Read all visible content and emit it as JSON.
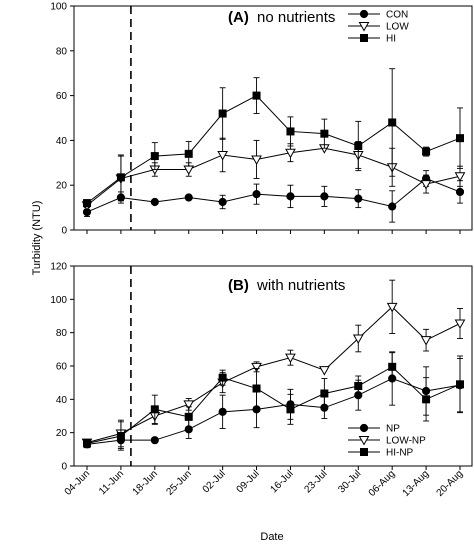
{
  "chart_data": [
    {
      "type": "line",
      "panel_label": "(A)",
      "title": "no nutrients",
      "ylabel": "Turbidity (NTU)",
      "xlabel": "Date",
      "ylim": [
        0,
        100
      ],
      "yticks": [
        0,
        20,
        40,
        60,
        80,
        100
      ],
      "x": [
        "04-Jun",
        "11-Jun",
        "18-Jun",
        "25-Jun",
        "02-Jul",
        "09-Jul",
        "16-Jul",
        "23-Jul",
        "30-Jul",
        "06-Aug",
        "13-Aug",
        "20-Aug"
      ],
      "legend_position": "top-right",
      "marker_date": "11-Jun",
      "series": [
        {
          "name": "CON",
          "marker": "circle",
          "values": [
            8,
            14.5,
            12.5,
            14.5,
            12.5,
            16,
            15,
            15,
            14,
            10.5,
            23,
            17
          ],
          "err": [
            2,
            2.5,
            0,
            0,
            3,
            4.5,
            5,
            4.5,
            4,
            7,
            3.5,
            5
          ]
        },
        {
          "name": "LOW",
          "marker": "triangle-down-open",
          "values": [
            11,
            23,
            27,
            27,
            33.5,
            31.5,
            34.5,
            36.5,
            33.5,
            28,
            20.5,
            24
          ],
          "err": [
            2,
            10,
            3,
            3,
            7.5,
            8.5,
            4,
            0,
            6,
            8.5,
            4,
            4.5
          ]
        },
        {
          "name": "HI",
          "marker": "square",
          "values": [
            12,
            23.5,
            33,
            34,
            52,
            60,
            44,
            43,
            37.5,
            48,
            35,
            41
          ],
          "err": [
            1.5,
            10,
            6,
            5.5,
            11.5,
            8,
            6.5,
            6.5,
            11,
            24,
            2,
            13.5
          ]
        }
      ]
    },
    {
      "type": "line",
      "panel_label": "(B)",
      "title": "with nutrients",
      "ylabel": "Turbidity (NTU)",
      "xlabel": "Date",
      "ylim": [
        0,
        120
      ],
      "yticks": [
        0,
        20,
        40,
        60,
        80,
        100,
        120
      ],
      "x": [
        "04-Jun",
        "11-Jun",
        "18-Jun",
        "25-Jun",
        "02-Jul",
        "09-Jul",
        "16-Jul",
        "23-Jul",
        "30-Jul",
        "06-Aug",
        "13-Aug",
        "20-Aug"
      ],
      "legend_position": "bottom-right",
      "marker_date": "11-Jun",
      "series": [
        {
          "name": "NP",
          "marker": "circle",
          "values": [
            13,
            15.5,
            15.5,
            22,
            32.5,
            34,
            37,
            35,
            42.5,
            52.5,
            45,
            48.5
          ],
          "err": [
            2,
            5,
            0,
            5.5,
            10,
            11,
            9,
            6.5,
            9,
            16,
            14.5,
            16
          ]
        },
        {
          "name": "LOW-NP",
          "marker": "triangle-down-open",
          "values": [
            14,
            19.5,
            30,
            37,
            50,
            59.5,
            65,
            57.5,
            76.5,
            95.5,
            75.5,
            85.5
          ],
          "err": [
            2,
            8,
            5,
            3.5,
            6,
            3,
            4.5,
            0,
            8,
            16,
            6.5,
            9
          ]
        },
        {
          "name": "HI-NP",
          "marker": "square",
          "values": [
            13.5,
            18,
            34,
            29.5,
            53,
            46.5,
            34,
            43.5,
            48,
            59.5,
            40,
            49
          ]
        },
        {
          "name": "HI-NP-err",
          "hidden": true,
          "values": [
            1.5,
            8.5,
            8.5,
            6,
            4.5,
            12,
            9,
            9,
            6,
            8.5,
            13,
            17
          ]
        }
      ]
    }
  ]
}
